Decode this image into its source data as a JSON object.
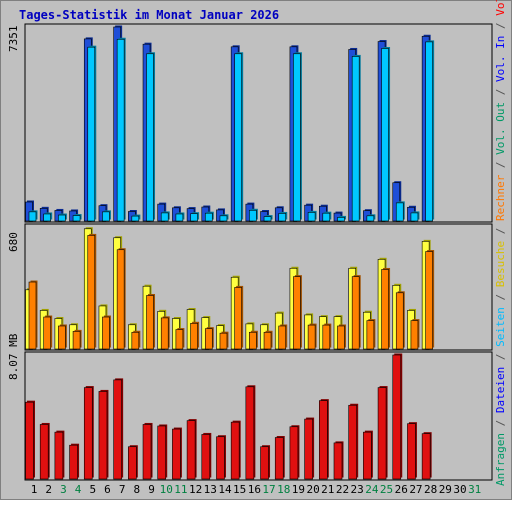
{
  "title": "Tages-Statistik im Monat Januar 2026",
  "right_legend": [
    {
      "text": "Anfragen",
      "color": "#009966"
    },
    {
      "text": " / ",
      "color": "#555555"
    },
    {
      "text": "Dateien",
      "color": "#0000ff"
    },
    {
      "text": " / ",
      "color": "#555555"
    },
    {
      "text": "Seiten",
      "color": "#00bbff"
    },
    {
      "text": " / ",
      "color": "#555555"
    },
    {
      "text": "Besuche",
      "color": "#d8c000"
    },
    {
      "text": " / ",
      "color": "#555555"
    },
    {
      "text": "Rechner",
      "color": "#ff7700"
    },
    {
      "text": " / ",
      "color": "#555555"
    },
    {
      "text": "Vol. Out",
      "color": "#009966"
    },
    {
      "text": " / ",
      "color": "#555555"
    },
    {
      "text": "Vol. In",
      "color": "#0000ff"
    },
    {
      "text": " / ",
      "color": "#555555"
    },
    {
      "text": "Volumen",
      "color": "#ff0000"
    }
  ],
  "colors": {
    "panel_bg": "#c0c0c0",
    "requests": "#1f4fd8",
    "files": "#1f4fd8",
    "pages": "#00c8ff",
    "visits": "#ffff40",
    "hosts": "#ff8000",
    "volume": "#e01010",
    "weekend_label": "#008040",
    "weekday_label": "#000000"
  },
  "chart_data": [
    {
      "type": "bar",
      "ymax_label": "7351",
      "ylim": [
        0,
        7351
      ],
      "categories": [
        "1",
        "2",
        "3",
        "4",
        "5",
        "6",
        "7",
        "8",
        "9",
        "10",
        "11",
        "12",
        "13",
        "14",
        "15",
        "16",
        "17",
        "18",
        "19",
        "20",
        "21",
        "22",
        "23",
        "24",
        "25",
        "26",
        "27",
        "28",
        "29",
        "30",
        "31"
      ],
      "series": [
        {
          "name": "Anfragen",
          "values": [
            720,
            480,
            400,
            380,
            6900,
            580,
            7351,
            360,
            6700,
            640,
            500,
            470,
            530,
            420,
            6600,
            640,
            360,
            500,
            6600,
            600,
            560,
            300,
            6500,
            390,
            6800,
            1450,
            520,
            7000,
            0,
            0,
            0
          ]
        },
        {
          "name": "Seiten",
          "values": [
            460,
            380,
            340,
            320,
            6700,
            460,
            7000,
            300,
            6450,
            420,
            380,
            390,
            410,
            310,
            6450,
            520,
            280,
            400,
            6450,
            440,
            410,
            250,
            6350,
            310,
            6650,
            800,
            420,
            6900,
            0,
            0,
            0
          ]
        }
      ]
    },
    {
      "type": "bar",
      "ymax_label": "680",
      "ylim": [
        0,
        680
      ],
      "categories": [
        "1",
        "2",
        "3",
        "4",
        "5",
        "6",
        "7",
        "8",
        "9",
        "10",
        "11",
        "12",
        "13",
        "14",
        "15",
        "16",
        "17",
        "18",
        "19",
        "20",
        "21",
        "22",
        "23",
        "24",
        "25",
        "26",
        "27",
        "28",
        "29",
        "30",
        "31"
      ],
      "series": [
        {
          "name": "Besuche",
          "values": [
            330,
            215,
            170,
            135,
            670,
            240,
            620,
            135,
            350,
            210,
            170,
            220,
            175,
            130,
            400,
            140,
            135,
            200,
            450,
            190,
            180,
            180,
            450,
            205,
            500,
            355,
            215,
            600,
            0,
            0,
            0
          ]
        },
        {
          "name": "Rechner",
          "values": [
            390,
            195,
            145,
            115,
            650,
            195,
            570,
            110,
            315,
            190,
            125,
            160,
            130,
            105,
            360,
            110,
            110,
            145,
            420,
            150,
            150,
            145,
            420,
            175,
            460,
            330,
            175,
            560,
            0,
            0,
            0
          ]
        }
      ]
    },
    {
      "type": "bar",
      "ymax_label": "8.07 MB",
      "ylim": [
        0,
        8.07
      ],
      "categories": [
        "1",
        "2",
        "3",
        "4",
        "5",
        "6",
        "7",
        "8",
        "9",
        "10",
        "11",
        "12",
        "13",
        "14",
        "15",
        "16",
        "17",
        "18",
        "19",
        "20",
        "21",
        "22",
        "23",
        "24",
        "25",
        "26",
        "27",
        "28",
        "29",
        "30",
        "31"
      ],
      "series": [
        {
          "name": "Volumen",
          "values": [
            5.0,
            3.55,
            3.05,
            2.2,
            5.95,
            5.7,
            6.45,
            2.1,
            3.55,
            3.45,
            3.25,
            3.8,
            2.9,
            2.75,
            3.7,
            6.0,
            2.1,
            2.7,
            3.4,
            3.9,
            5.1,
            2.35,
            4.8,
            3.05,
            5.95,
            8.07,
            3.6,
            2.95,
            0,
            0,
            0
          ]
        }
      ]
    }
  ],
  "day_labels": [
    {
      "text": "1",
      "weekend": false
    },
    {
      "text": "2",
      "weekend": false
    },
    {
      "text": "3",
      "weekend": true
    },
    {
      "text": "4",
      "weekend": true
    },
    {
      "text": "5",
      "weekend": false
    },
    {
      "text": "6",
      "weekend": false
    },
    {
      "text": "7",
      "weekend": false
    },
    {
      "text": "8",
      "weekend": false
    },
    {
      "text": "9",
      "weekend": false
    },
    {
      "text": "10",
      "weekend": true
    },
    {
      "text": "11",
      "weekend": true
    },
    {
      "text": "12",
      "weekend": false
    },
    {
      "text": "13",
      "weekend": false
    },
    {
      "text": "14",
      "weekend": false
    },
    {
      "text": "15",
      "weekend": false
    },
    {
      "text": "16",
      "weekend": false
    },
    {
      "text": "17",
      "weekend": true
    },
    {
      "text": "18",
      "weekend": true
    },
    {
      "text": "19",
      "weekend": false
    },
    {
      "text": "20",
      "weekend": false
    },
    {
      "text": "21",
      "weekend": false
    },
    {
      "text": "22",
      "weekend": false
    },
    {
      "text": "23",
      "weekend": false
    },
    {
      "text": "24",
      "weekend": true
    },
    {
      "text": "25",
      "weekend": true
    },
    {
      "text": "26",
      "weekend": false
    },
    {
      "text": "27",
      "weekend": false
    },
    {
      "text": "28",
      "weekend": false
    },
    {
      "text": "29",
      "weekend": false
    },
    {
      "text": "30",
      "weekend": false
    },
    {
      "text": "31",
      "weekend": true
    }
  ]
}
